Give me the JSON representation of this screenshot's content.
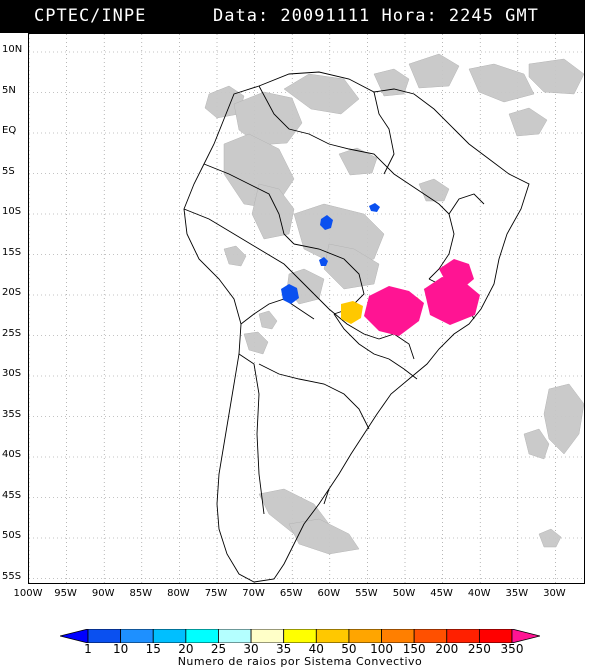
{
  "header": {
    "source": "CPTEC/INPE",
    "datetime": "Data: 20091111 Hora: 2245 GMT"
  },
  "map": {
    "lat_labels": [
      "10N",
      "5N",
      "EQ",
      "5S",
      "10S",
      "15S",
      "20S",
      "25S",
      "30S",
      "35S",
      "40S",
      "45S",
      "50S",
      "55S"
    ],
    "lon_labels": [
      "100W",
      "95W",
      "90W",
      "85W",
      "80W",
      "75W",
      "70W",
      "65W",
      "60W",
      "55W",
      "50W",
      "45W",
      "40W",
      "35W",
      "30W"
    ],
    "lat_range": [
      11,
      -56
    ],
    "lon_range": [
      -100,
      -27
    ]
  },
  "legend": {
    "values": [
      "1",
      "10",
      "15",
      "20",
      "25",
      "30",
      "35",
      "40",
      "50",
      "100",
      "150",
      "200",
      "250",
      "350"
    ],
    "colors": [
      "#0000ff",
      "#0a50f0",
      "#1e90ff",
      "#00bfff",
      "#00ffff",
      "#b4ffff",
      "#ffffc8",
      "#ffff00",
      "#ffc800",
      "#ffa500",
      "#ff7f00",
      "#ff5000",
      "#ff2000",
      "#ff0000",
      "#ff1493"
    ],
    "title": "Numero de raios por Sistema Convectivo"
  }
}
